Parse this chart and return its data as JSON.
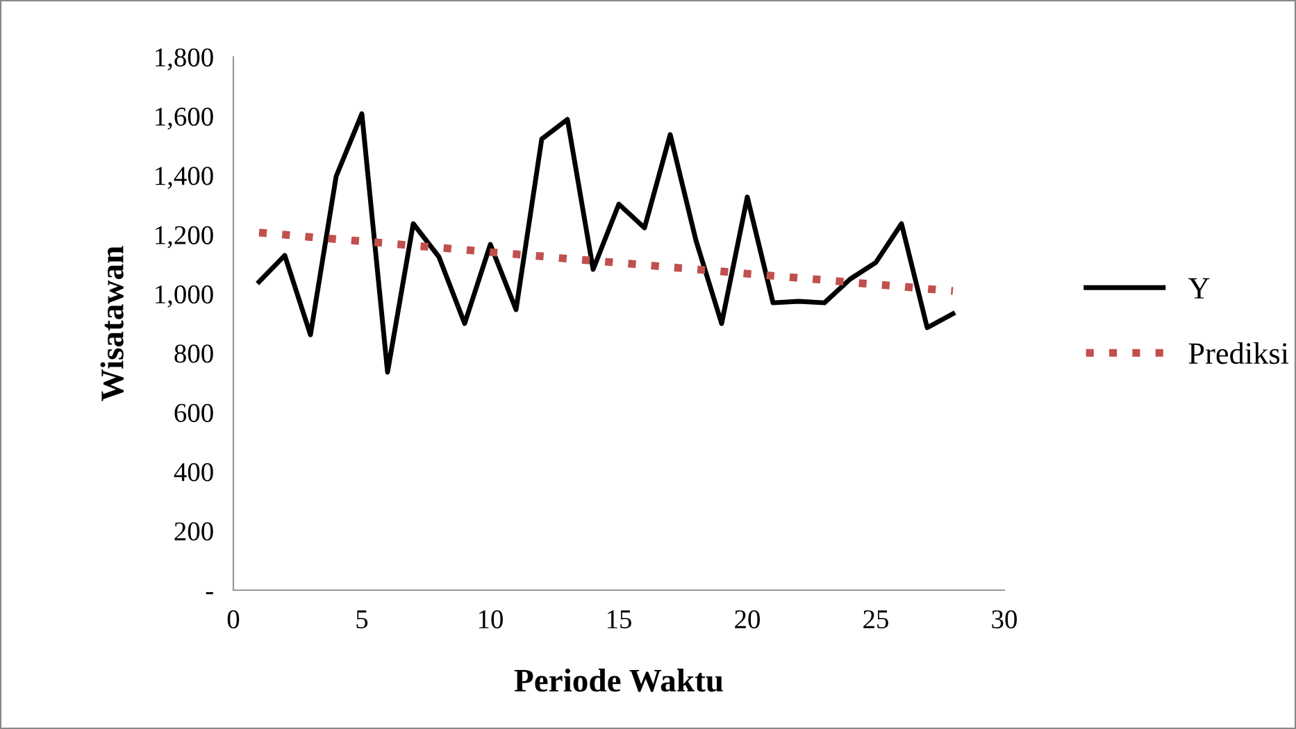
{
  "chart_data": {
    "type": "line",
    "xlabel": "Periode Waktu",
    "ylabel": "Wisatawan",
    "x": [
      1,
      2,
      3,
      4,
      5,
      6,
      7,
      8,
      9,
      10,
      11,
      12,
      13,
      14,
      15,
      16,
      17,
      18,
      19,
      20,
      21,
      22,
      23,
      24,
      25,
      26,
      27,
      28
    ],
    "series": [
      {
        "name": "Y",
        "color": "#000000",
        "line_style": "solid",
        "values": [
          1041,
          1130,
          862,
          1397,
          1608,
          736,
          1237,
          1125,
          900,
          1167,
          947,
          1523,
          1589,
          1083,
          1303,
          1223,
          1538,
          1181,
          900,
          1327,
          970,
          975,
          970,
          1050,
          1106,
          1237,
          886,
          933
        ]
      },
      {
        "name": "Prediksi",
        "color": "#c0504d",
        "line_style": "dotted",
        "values": [
          1207,
          1200,
          1192,
          1185,
          1178,
          1171,
          1163,
          1156,
          1149,
          1141,
          1134,
          1127,
          1119,
          1112,
          1105,
          1098,
          1090,
          1083,
          1076,
          1068,
          1061,
          1054,
          1047,
          1039,
          1032,
          1025,
          1017,
          1010
        ]
      }
    ],
    "xlim": [
      0,
      30
    ],
    "xticks": [
      0,
      5,
      10,
      15,
      20,
      25,
      30
    ],
    "ylim": [
      0,
      1800
    ],
    "yticks": [
      {
        "value": 0,
        "label": "-"
      },
      {
        "value": 200,
        "label": "200"
      },
      {
        "value": 400,
        "label": "400"
      },
      {
        "value": 600,
        "label": "600"
      },
      {
        "value": 800,
        "label": "800"
      },
      {
        "value": 1000,
        "label": "1,000"
      },
      {
        "value": 1200,
        "label": "1,200"
      },
      {
        "value": 1400,
        "label": "1,400"
      },
      {
        "value": 1600,
        "label": "1,600"
      },
      {
        "value": 1800,
        "label": "1,800"
      }
    ],
    "grid": false,
    "legend": "right"
  }
}
